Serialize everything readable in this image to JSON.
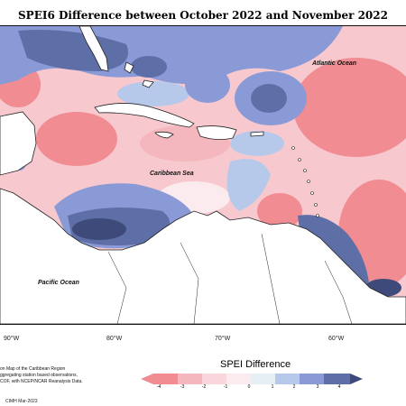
{
  "title": "SPEI6 Difference between October 2022 and November 2022",
  "labels": {
    "atlantic": "Atlantic Ocean",
    "caribbean": "Caribbean Sea",
    "pacific": "Pacific Ocean"
  },
  "longitude_ticks": [
    "90°W",
    "80°W",
    "70°W",
    "60°W"
  ],
  "legend": {
    "title": "SPEI Difference",
    "ticks": [
      "-4",
      "-3",
      "-2",
      "-1",
      "0",
      "1",
      "2",
      "3",
      "4"
    ],
    "colors": [
      "#f08c92",
      "#f4b7bd",
      "#f9d6db",
      "#fcebee",
      "#e6f0f4",
      "#b7c9ea",
      "#8a9ad6",
      "#5e6ea6",
      "#3d4a7a"
    ]
  },
  "credits": {
    "lines": [
      "on Map of the Caribbean Region",
      "ggregating station based observations,",
      "COF, with NCEP/NCAR Reanalysis Data."
    ],
    "date": "CIMH Mar-2023"
  },
  "colors": {
    "land": "#ffffff",
    "coast": "#222222"
  }
}
